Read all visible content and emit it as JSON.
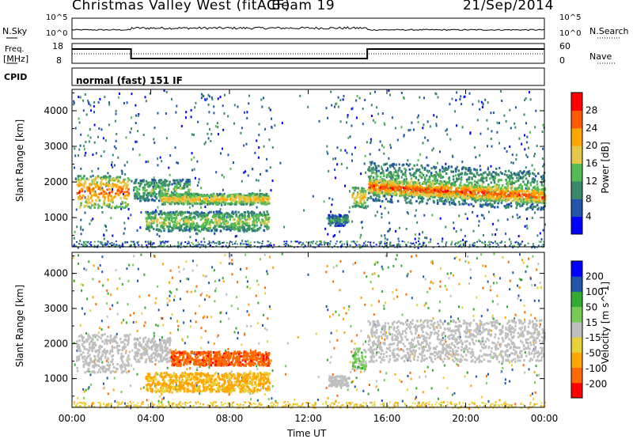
{
  "header": {
    "station": "Christmas Valley West (fitACF)",
    "beam": "Beam 19",
    "date": "21/Sep/2014"
  },
  "panels": {
    "nsky": {
      "label": "N.Sky",
      "ticks": [
        "10^5",
        "10^0"
      ]
    },
    "nsearch": {
      "label": "N.Search",
      "ticks": [
        "10^5",
        "10^0"
      ]
    },
    "freq": {
      "label_line1": "Freq.",
      "label_line2": "[MHz]",
      "ticks": [
        "18",
        "8"
      ]
    },
    "nave": {
      "label": "Nave",
      "ticks": [
        "60",
        "0"
      ]
    },
    "cpid": {
      "label": "CPID",
      "value": "normal (fast) 151 IF"
    }
  },
  "colors": {
    "power": [
      "#0000ff",
      "#2255aa",
      "#3a8a6a",
      "#55bb55",
      "#e6c84a",
      "#ffa500",
      "#ff5a00",
      "#ff0000"
    ],
    "velocity": [
      "#ff0000",
      "#ff6a00",
      "#ffa500",
      "#e8d23a",
      "#bfbfbf",
      "#77cc55",
      "#33aa33",
      "#2255aa",
      "#0000ff"
    ],
    "ground": "#bfbfbf"
  },
  "chart_data": [
    {
      "type": "heatmap",
      "name": "Power",
      "ylabel": "Slant Range [km]",
      "xlabel": "",
      "xlim": [
        "00:00",
        "24:00"
      ],
      "ylim": [
        180,
        4600
      ],
      "xticks": [
        "00:00",
        "04:00",
        "08:00",
        "12:00",
        "16:00",
        "20:00",
        "00:00"
      ],
      "yticks": [
        1000,
        2000,
        3000,
        4000
      ],
      "colorbar": {
        "label": "Power [dB]",
        "ticks": [
          "28",
          "24",
          "20",
          "16",
          "12",
          "8",
          "4"
        ],
        "range": [
          0,
          30
        ]
      },
      "bands": [
        {
          "t0": 0.2,
          "t1": 2.9,
          "r0": 1300,
          "r1": 2200,
          "level": 24
        },
        {
          "t0": 3.1,
          "t1": 6.0,
          "r0": 1500,
          "r1": 2100,
          "level": 14
        },
        {
          "t0": 4.5,
          "t1": 10.0,
          "r0": 1400,
          "r1": 1700,
          "level": 20
        },
        {
          "t0": 3.7,
          "t1": 10.0,
          "r0": 650,
          "r1": 1200,
          "level": 16
        },
        {
          "t0": 13.0,
          "t1": 14.0,
          "r0": 800,
          "r1": 1100,
          "level": 10
        },
        {
          "t0": 14.2,
          "t1": 14.9,
          "r0": 1300,
          "r1": 1900,
          "level": 20
        },
        {
          "t0": 15.0,
          "t1": 24.0,
          "r0": 1500,
          "r1": 2600,
          "level": 14
        },
        {
          "t0": 15.0,
          "t1": 24.0,
          "r0": 1700,
          "r1": 2100,
          "level": 26
        }
      ]
    },
    {
      "type": "heatmap",
      "name": "Velocity",
      "ylabel": "Slant Range [km]",
      "xlabel": "Time UT",
      "xlim": [
        "00:00",
        "24:00"
      ],
      "ylim": [
        180,
        4600
      ],
      "xticks": [
        "00:00",
        "04:00",
        "08:00",
        "12:00",
        "16:00",
        "20:00",
        "00:00"
      ],
      "yticks": [
        1000,
        2000,
        3000,
        4000
      ],
      "colorbar": {
        "label": "Velocity [m s^-1]",
        "ticks": [
          "200",
          "100",
          "50",
          "15",
          "-15",
          "-50",
          "-100",
          "-200"
        ],
        "range": [
          -250,
          250
        ]
      },
      "bands": [
        {
          "t0": 0.2,
          "t1": 2.9,
          "r0": 1200,
          "r1": 2300,
          "level": 0
        },
        {
          "t0": 3.1,
          "t1": 5.0,
          "r0": 1500,
          "r1": 2200,
          "level": 0
        },
        {
          "t0": 5.0,
          "t1": 10.0,
          "r0": 1400,
          "r1": 1800,
          "level": -180
        },
        {
          "t0": 3.7,
          "t1": 10.0,
          "r0": 650,
          "r1": 1200,
          "level": -60
        },
        {
          "t0": 13.0,
          "t1": 14.0,
          "r0": 800,
          "r1": 1100,
          "level": 0
        },
        {
          "t0": 14.2,
          "t1": 14.9,
          "r0": 1300,
          "r1": 1900,
          "level": 30
        },
        {
          "t0": 15.0,
          "t1": 24.0,
          "r0": 1500,
          "r1": 2700,
          "level": 0
        }
      ]
    }
  ]
}
